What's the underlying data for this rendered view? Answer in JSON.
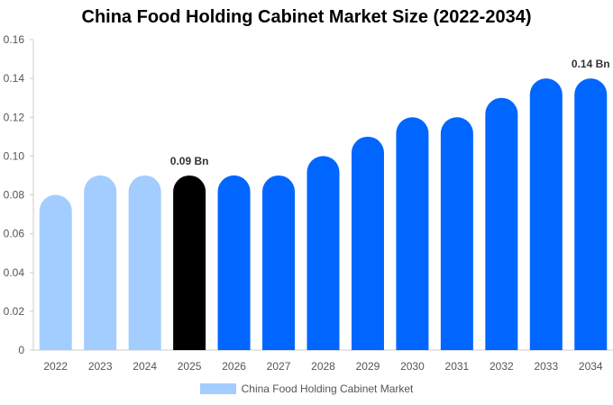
{
  "chart_data": {
    "type": "bar",
    "title": "China Food Holding Cabinet Market Size (2022-2034)",
    "categories": [
      "2022",
      "2023",
      "2024",
      "2025",
      "2026",
      "2027",
      "2028",
      "2029",
      "2030",
      "2031",
      "2032",
      "2033",
      "2034"
    ],
    "series": [
      {
        "name": "China Food Holding Cabinet Market",
        "values": [
          0.08,
          0.09,
          0.09,
          0.09,
          0.09,
          0.09,
          0.1,
          0.11,
          0.12,
          0.12,
          0.13,
          0.14,
          0.14
        ]
      }
    ],
    "ylim": [
      0,
      0.16
    ],
    "yticks": [
      "0",
      "0.02",
      "0.04",
      "0.06",
      "0.08",
      "0.10",
      "0.12",
      "0.14",
      "0.16"
    ],
    "data_labels": [
      {
        "category": "2025",
        "text": "0.09 Bn"
      },
      {
        "category": "2034",
        "text": "0.14 Bn"
      }
    ],
    "colors": {
      "historical": "#a3cdff",
      "current": "#000000",
      "forecast": "#0066ff",
      "legend_swatch": "#a3cdff"
    },
    "historical_count": 3,
    "current_index": 3,
    "legend_position": "bottom-center",
    "grid": false
  }
}
